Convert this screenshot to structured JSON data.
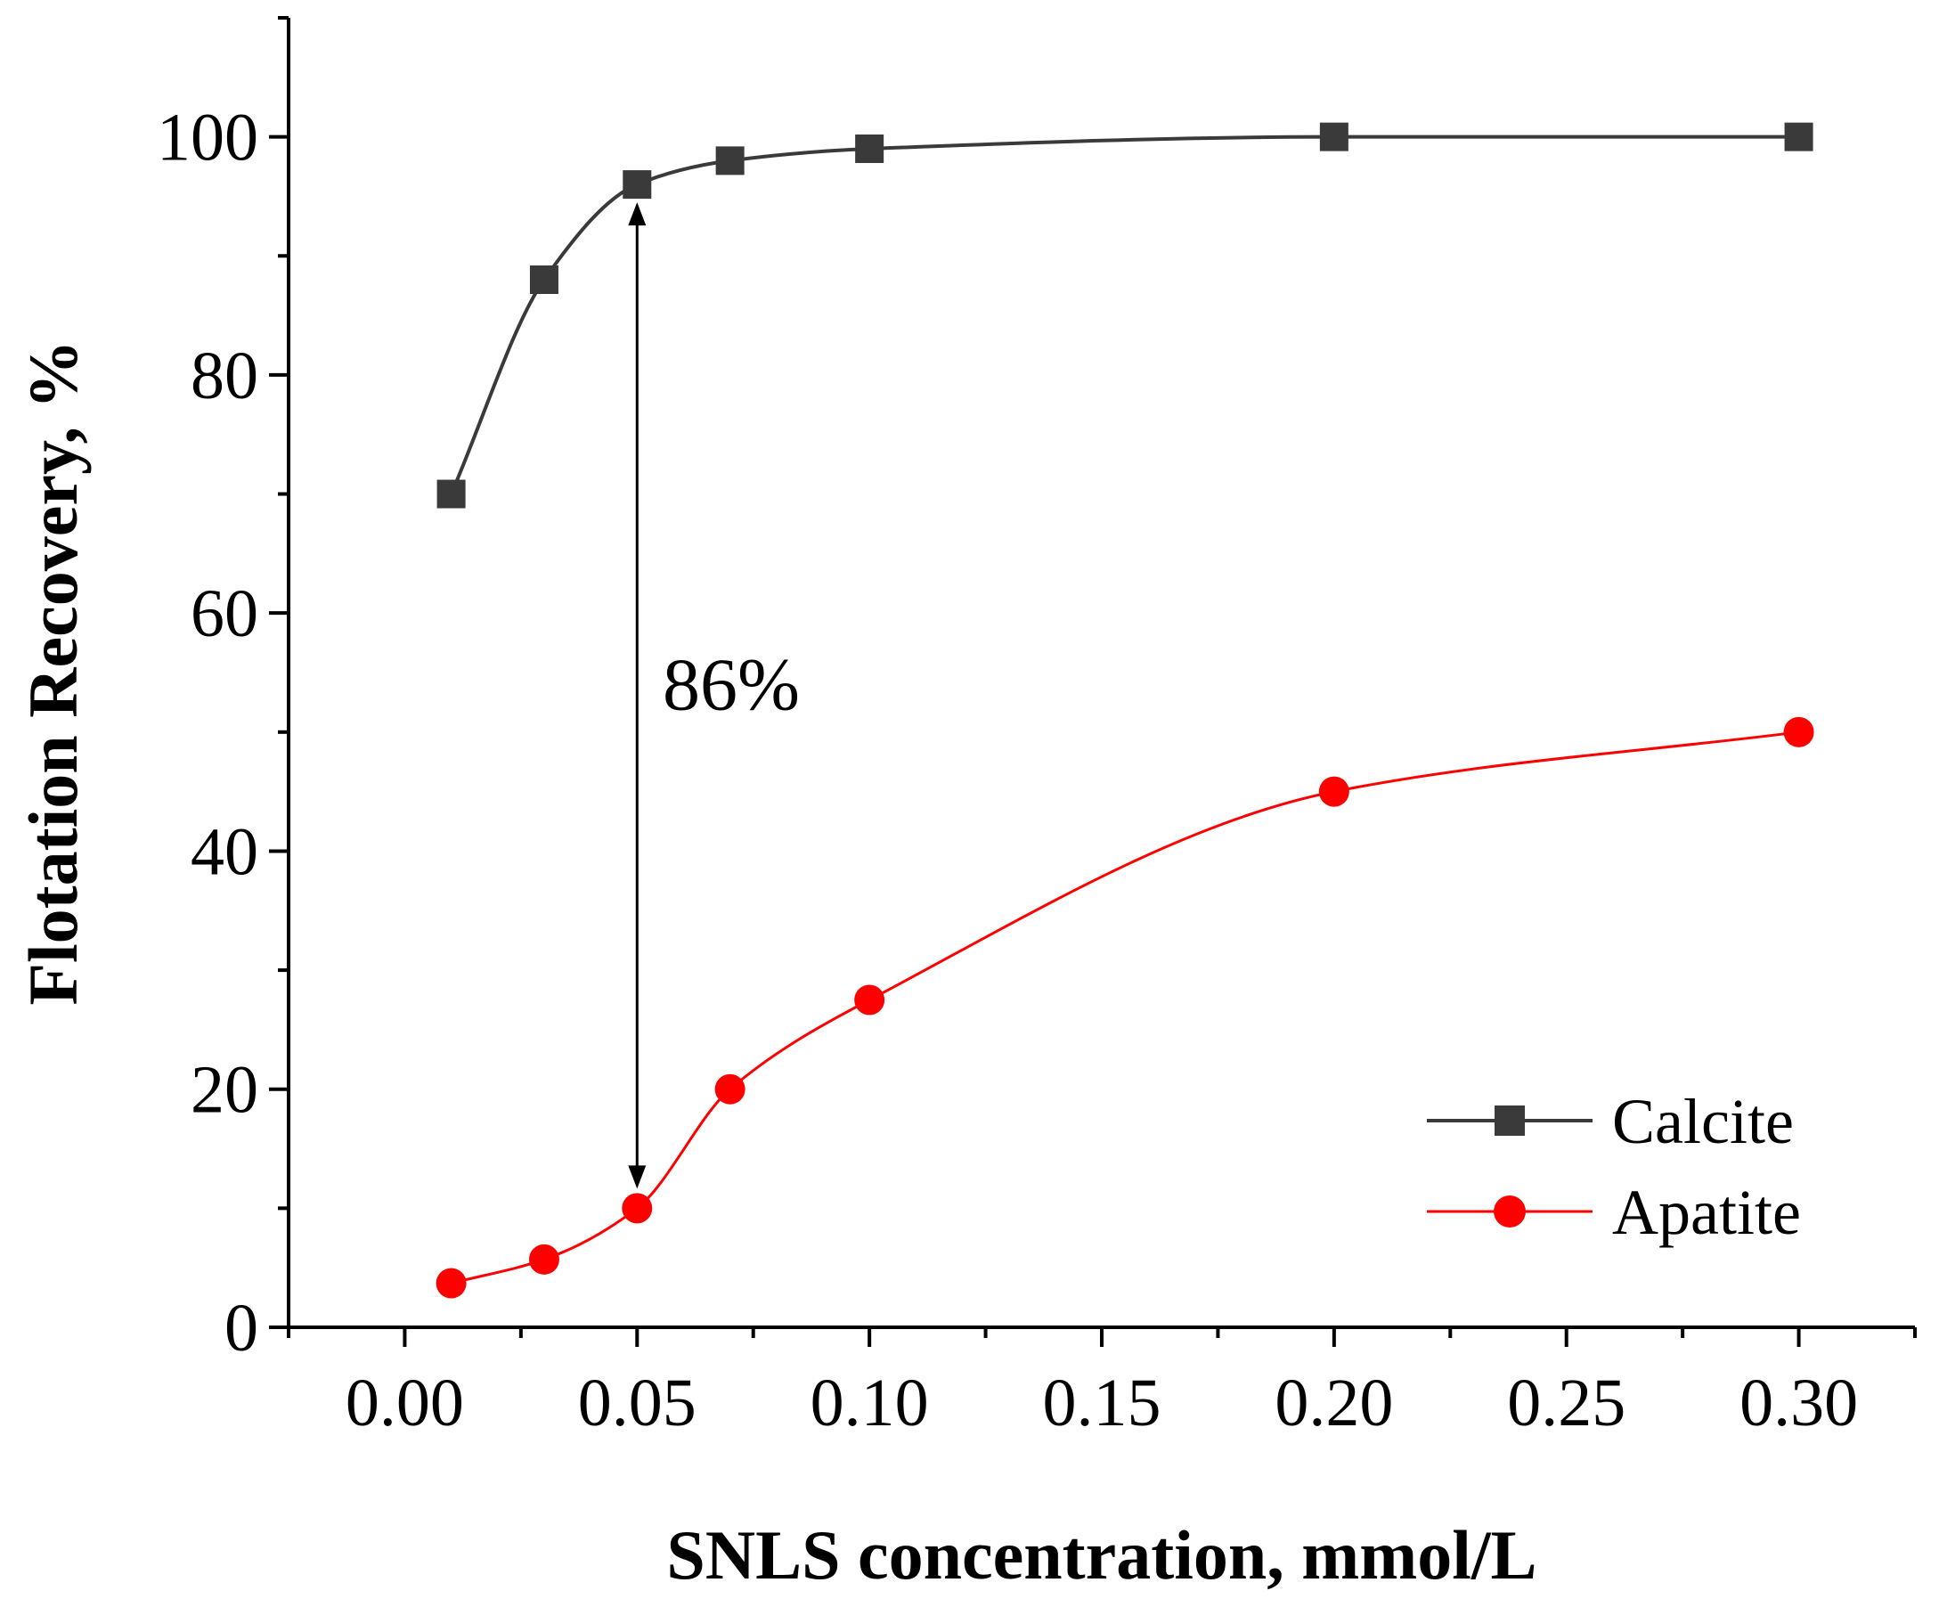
{
  "chart_data": {
    "type": "line",
    "title": "",
    "xlabel": "SNLS concentration, mmol/L",
    "ylabel": "Flotation Recovery, %",
    "xlim": [
      -0.025,
      0.325
    ],
    "ylim": [
      0,
      110
    ],
    "x_ticks": [
      0.0,
      0.05,
      0.1,
      0.15,
      0.2,
      0.25,
      0.3
    ],
    "x_tick_labels": [
      "0.00",
      "0.05",
      "0.10",
      "0.15",
      "0.20",
      "0.25",
      "0.30"
    ],
    "y_ticks": [
      0,
      20,
      40,
      60,
      80,
      100
    ],
    "y_tick_labels": [
      "0",
      "20",
      "40",
      "60",
      "80",
      "100"
    ],
    "grid": false,
    "legend_position": "bottom-right",
    "series": [
      {
        "name": "Calcite",
        "marker": "square",
        "color": "#3a3a3a",
        "x": [
          0.01,
          0.03,
          0.05,
          0.07,
          0.1,
          0.2,
          0.3
        ],
        "y": [
          70,
          88,
          96,
          98,
          99,
          100,
          100
        ]
      },
      {
        "name": "Apatite",
        "marker": "circle",
        "color": "#ff0000",
        "x": [
          0.01,
          0.03,
          0.05,
          0.07,
          0.1,
          0.2,
          0.3
        ],
        "y": [
          3.7,
          5.7,
          10,
          20,
          27.5,
          45,
          50
        ]
      }
    ],
    "annotations": [
      {
        "text": "86%",
        "arrow_x": 0.05,
        "arrow_y_from": 96,
        "arrow_y_to": 10,
        "text_x": 0.0555,
        "text_y": 54
      }
    ]
  }
}
